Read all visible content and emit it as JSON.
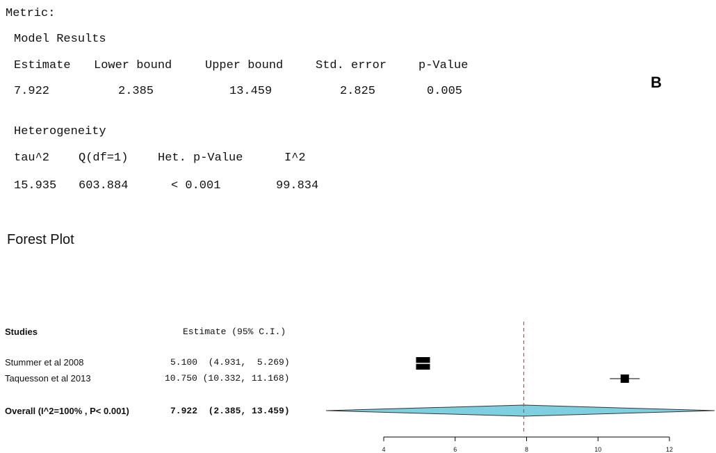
{
  "panel_label": "B",
  "metric_label": "Metric:",
  "model_results": {
    "title": "Model Results",
    "headers": [
      "Estimate",
      "Lower bound",
      "Upper bound",
      "Std. error",
      "p-Value"
    ],
    "values": [
      "7.922",
      "2.385",
      "13.459",
      "2.825",
      "0.005"
    ]
  },
  "heterogeneity": {
    "title": "Heterogeneity",
    "headers": [
      "tau^2",
      "Q(df=1)",
      "Het. p-Value",
      "I^2"
    ],
    "values": [
      "15.935",
      "603.884",
      "< 0.001",
      "99.834"
    ]
  },
  "forest_title": "Forest Plot",
  "chart_data": {
    "type": "forest",
    "studies_header": "Studies",
    "estimate_header": "Estimate (95% C.I.)",
    "studies": [
      {
        "label": "Stummer et al 2008",
        "ci_text": "5.100  (4.931,  5.269)",
        "estimate": 5.1,
        "lower": 4.931,
        "upper": 5.269
      },
      {
        "label": "Taquesson et al 2013",
        "ci_text": "10.750 (10.332, 11.168)",
        "estimate": 10.75,
        "lower": 10.332,
        "upper": 11.168
      }
    ],
    "overall": {
      "label": "Overall (I^2=100% , P< 0.001)",
      "ci_text": "7.922  (2.385, 13.459)",
      "estimate": 7.922,
      "lower": 2.385,
      "upper": 13.459
    },
    "x_ticks": [
      4,
      6,
      8,
      10,
      12
    ],
    "colors": {
      "diamond": "#7ecfe0",
      "reference_line": "#e23b3b",
      "marker": "#000000"
    }
  }
}
